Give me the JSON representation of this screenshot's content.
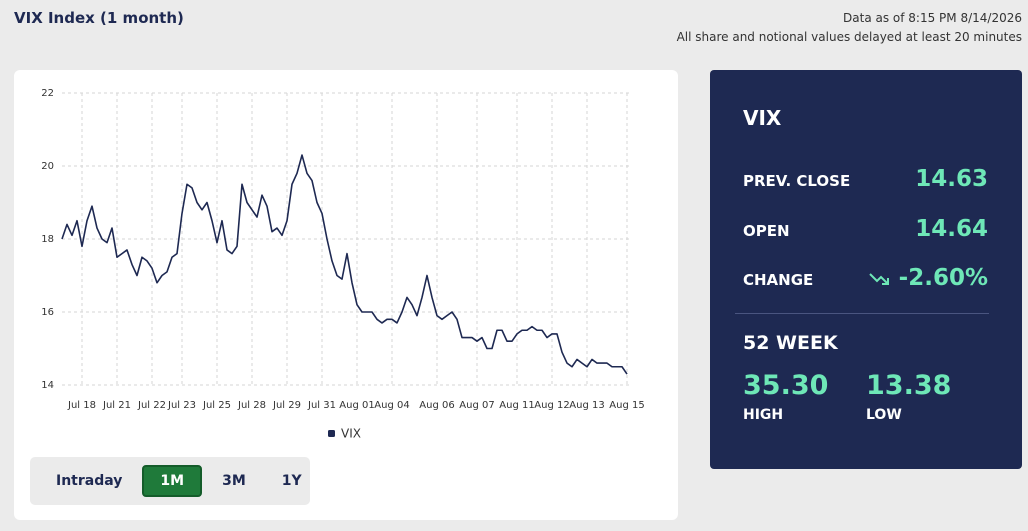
{
  "header": {
    "title": "VIX Index (1 month)",
    "data_as_of": "Data as of 8:15 PM 8/14/2026",
    "delay_note": "All share and notional values delayed at least 20 minutes"
  },
  "chart_data": {
    "type": "line",
    "categories": [
      null,
      null,
      null,
      null,
      "Jul 18",
      null,
      null,
      null,
      null,
      null,
      null,
      "Jul 21",
      null,
      null,
      null,
      null,
      null,
      null,
      "Jul 22",
      null,
      null,
      null,
      null,
      null,
      "Jul 23",
      null,
      null,
      null,
      null,
      null,
      null,
      "Jul 25",
      null,
      null,
      null,
      null,
      null,
      null,
      "Jul 28",
      null,
      null,
      null,
      null,
      null,
      null,
      "Jul 29",
      null,
      null,
      null,
      null,
      null,
      null,
      "Jul 31",
      null,
      null,
      null,
      null,
      null,
      null,
      "Aug 01",
      null,
      null,
      null,
      null,
      null,
      null,
      "Aug 04",
      null,
      null,
      null,
      null,
      null,
      null,
      null,
      null,
      "Aug 06",
      null,
      null,
      null,
      null,
      null,
      null,
      null,
      "Aug 07",
      null,
      null,
      null,
      null,
      null,
      null,
      null,
      "Aug 11",
      null,
      null,
      null,
      null,
      null,
      null,
      "Aug 12",
      null,
      null,
      null,
      null,
      null,
      null,
      "Aug 13",
      null,
      null,
      null,
      null,
      null,
      null,
      null,
      "Aug 15"
    ],
    "series": [
      {
        "name": "VIX",
        "color": "#1e2952",
        "values": [
          18.0,
          18.4,
          18.1,
          18.5,
          17.8,
          18.5,
          18.9,
          18.3,
          18.0,
          17.9,
          18.3,
          17.5,
          17.6,
          17.7,
          17.3,
          17.0,
          17.5,
          17.4,
          17.2,
          16.8,
          17.0,
          17.1,
          17.5,
          17.6,
          18.7,
          19.5,
          19.4,
          19.0,
          18.8,
          19.0,
          18.5,
          17.9,
          18.5,
          17.7,
          17.6,
          17.8,
          19.5,
          19.0,
          18.8,
          18.6,
          19.2,
          18.9,
          18.2,
          18.3,
          18.1,
          18.5,
          19.5,
          19.8,
          20.3,
          19.8,
          19.6,
          19.0,
          18.7,
          18.0,
          17.4,
          17.0,
          16.9,
          17.6,
          16.8,
          16.2,
          16.0,
          16.0,
          16.0,
          15.8,
          15.7,
          15.8,
          15.8,
          15.7,
          16.0,
          16.4,
          16.2,
          15.9,
          16.4,
          17.0,
          16.4,
          15.9,
          15.8,
          15.9,
          16.0,
          15.8,
          15.3,
          15.3,
          15.3,
          15.2,
          15.3,
          15.0,
          15.0,
          15.5,
          15.5,
          15.2,
          15.2,
          15.4,
          15.5,
          15.5,
          15.6,
          15.5,
          15.5,
          15.3,
          15.4,
          15.4,
          14.9,
          14.6,
          14.5,
          14.7,
          14.6,
          14.5,
          14.7,
          14.6,
          14.6,
          14.6,
          14.5,
          14.5,
          14.5,
          14.3
        ]
      }
    ],
    "ylim": [
      14,
      22
    ],
    "yticks": [
      14,
      16,
      18,
      20,
      22
    ],
    "grid": true
  },
  "range_buttons": {
    "options": [
      "Intraday",
      "1M",
      "3M",
      "1Y"
    ],
    "active": "1M"
  },
  "panel": {
    "title": "VIX",
    "rows": [
      {
        "label": "PREV. CLOSE",
        "value": "14.63"
      },
      {
        "label": "OPEN",
        "value": "14.64"
      },
      {
        "label": "CHANGE",
        "value": "-2.60%"
      }
    ],
    "week52": {
      "title": "52 WEEK",
      "high": "35.30",
      "high_label": "HIGH",
      "low": "13.38",
      "low_label": "LOW"
    }
  }
}
